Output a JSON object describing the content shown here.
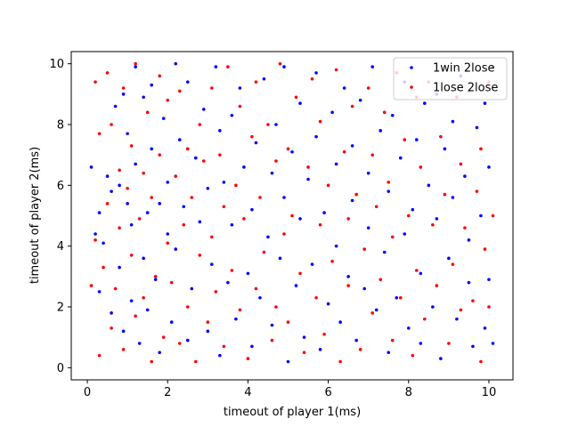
{
  "chart_data": {
    "type": "scatter",
    "xlabel": "timeout of player 1(ms)",
    "ylabel": "timeout of player 2(ms)",
    "xlim": [
      -0.4,
      10.6
    ],
    "ylim": [
      -0.4,
      10.4
    ],
    "xticks": [
      0,
      2,
      4,
      6,
      8,
      10
    ],
    "yticks": [
      0,
      2,
      4,
      6,
      8,
      10
    ],
    "grid": false,
    "legend_position": "top-right",
    "series": [
      {
        "name": "1win 2lose",
        "color": "#0000ff",
        "points": [
          [
            0.1,
            6.6
          ],
          [
            0.2,
            4.4
          ],
          [
            0.3,
            5.1
          ],
          [
            0.3,
            2.5
          ],
          [
            0.4,
            4.1
          ],
          [
            0.5,
            6.3
          ],
          [
            0.6,
            5.8
          ],
          [
            0.6,
            1.8
          ],
          [
            0.7,
            8.6
          ],
          [
            0.8,
            6.0
          ],
          [
            0.8,
            3.3
          ],
          [
            0.9,
            9.0
          ],
          [
            0.9,
            1.2
          ],
          [
            1.0,
            7.7
          ],
          [
            1.0,
            5.4
          ],
          [
            1.1,
            4.7
          ],
          [
            1.1,
            2.2
          ],
          [
            1.2,
            9.9
          ],
          [
            1.2,
            6.7
          ],
          [
            1.3,
            0.8
          ],
          [
            1.4,
            3.6
          ],
          [
            1.4,
            8.9
          ],
          [
            1.5,
            5.1
          ],
          [
            1.5,
            1.9
          ],
          [
            1.6,
            7.2
          ],
          [
            1.6,
            9.3
          ],
          [
            1.7,
            2.9
          ],
          [
            1.8,
            5.4
          ],
          [
            1.8,
            0.5
          ],
          [
            1.9,
            8.2
          ],
          [
            2.0,
            4.4
          ],
          [
            2.0,
            6.1
          ],
          [
            2.1,
            1.5
          ],
          [
            2.2,
            10.0
          ],
          [
            2.2,
            3.9
          ],
          [
            2.3,
            7.5
          ],
          [
            2.4,
            5.3
          ],
          [
            2.5,
            0.9
          ],
          [
            2.5,
            9.4
          ],
          [
            2.6,
            2.6
          ],
          [
            2.7,
            6.9
          ],
          [
            2.8,
            4.8
          ],
          [
            2.9,
            8.5
          ],
          [
            3.0,
            1.2
          ],
          [
            3.0,
            5.9
          ],
          [
            3.1,
            3.4
          ],
          [
            3.2,
            9.9
          ],
          [
            3.3,
            7.8
          ],
          [
            3.3,
            0.4
          ],
          [
            3.4,
            6.1
          ],
          [
            3.5,
            2.8
          ],
          [
            3.6,
            8.3
          ],
          [
            3.6,
            4.7
          ],
          [
            3.7,
            1.6
          ],
          [
            3.8,
            9.2
          ],
          [
            3.9,
            6.6
          ],
          [
            4.0,
            3.1
          ],
          [
            4.1,
            5.2
          ],
          [
            4.1,
            0.7
          ],
          [
            4.2,
            7.4
          ],
          [
            4.3,
            2.3
          ],
          [
            4.4,
            9.5
          ],
          [
            4.5,
            4.3
          ],
          [
            4.6,
            6.4
          ],
          [
            4.6,
            1.4
          ],
          [
            4.7,
            8.0
          ],
          [
            4.8,
            3.6
          ],
          [
            4.9,
            9.9
          ],
          [
            4.9,
            5.6
          ],
          [
            5.0,
            0.2
          ],
          [
            5.1,
            7.1
          ],
          [
            5.2,
            2.7
          ],
          [
            5.3,
            4.9
          ],
          [
            5.3,
            8.7
          ],
          [
            5.4,
            1.0
          ],
          [
            5.5,
            6.2
          ],
          [
            5.6,
            3.4
          ],
          [
            5.7,
            9.7
          ],
          [
            5.7,
            7.6
          ],
          [
            5.8,
            0.6
          ],
          [
            5.9,
            5.1
          ],
          [
            6.0,
            2.1
          ],
          [
            6.1,
            8.4
          ],
          [
            6.2,
            4.0
          ],
          [
            6.2,
            6.7
          ],
          [
            6.3,
            1.5
          ],
          [
            6.4,
            9.2
          ],
          [
            6.5,
            3.0
          ],
          [
            6.6,
            5.5
          ],
          [
            6.6,
            7.3
          ],
          [
            6.7,
            0.9
          ],
          [
            6.8,
            8.8
          ],
          [
            6.9,
            2.6
          ],
          [
            7.0,
            4.6
          ],
          [
            7.0,
            6.4
          ],
          [
            7.1,
            9.9
          ],
          [
            7.2,
            1.9
          ],
          [
            7.3,
            7.8
          ],
          [
            7.4,
            3.8
          ],
          [
            7.5,
            5.8
          ],
          [
            7.5,
            0.5
          ],
          [
            7.6,
            8.3
          ],
          [
            7.7,
            2.3
          ],
          [
            7.8,
            6.9
          ],
          [
            7.9,
            4.4
          ],
          [
            7.9,
            9.4
          ],
          [
            8.0,
            1.3
          ],
          [
            8.1,
            5.2
          ],
          [
            8.2,
            7.5
          ],
          [
            8.3,
            3.1
          ],
          [
            8.3,
            0.8
          ],
          [
            8.4,
            8.7
          ],
          [
            8.5,
            6.0
          ],
          [
            8.6,
            2.0
          ],
          [
            8.7,
            9.0
          ],
          [
            8.7,
            4.9
          ],
          [
            8.8,
            0.3
          ],
          [
            8.9,
            7.2
          ],
          [
            9.0,
            3.6
          ],
          [
            9.1,
            5.6
          ],
          [
            9.1,
            8.1
          ],
          [
            9.2,
            1.6
          ],
          [
            9.3,
            9.6
          ],
          [
            9.4,
            6.3
          ],
          [
            9.5,
            2.8
          ],
          [
            9.5,
            4.2
          ],
          [
            9.6,
            0.7
          ],
          [
            9.7,
            7.9
          ],
          [
            9.8,
            5.0
          ],
          [
            9.9,
            1.3
          ],
          [
            9.9,
            8.7
          ],
          [
            10.0,
            2.9
          ],
          [
            10.0,
            6.6
          ],
          [
            10.1,
            0.8
          ],
          [
            10.1,
            9.9
          ]
        ]
      },
      {
        "name": "1lose 2lose",
        "color": "#ff0000",
        "points": [
          [
            0.1,
            2.7
          ],
          [
            0.2,
            9.4
          ],
          [
            0.2,
            4.2
          ],
          [
            0.3,
            0.4
          ],
          [
            0.3,
            7.7
          ],
          [
            0.4,
            3.3
          ],
          [
            0.5,
            9.7
          ],
          [
            0.5,
            5.4
          ],
          [
            0.6,
            1.3
          ],
          [
            0.6,
            8.0
          ],
          [
            0.7,
            2.6
          ],
          [
            0.8,
            6.5
          ],
          [
            0.8,
            4.6
          ],
          [
            0.9,
            9.2
          ],
          [
            0.9,
            0.6
          ],
          [
            1.0,
            5.9
          ],
          [
            1.1,
            3.7
          ],
          [
            1.1,
            7.3
          ],
          [
            1.2,
            1.7
          ],
          [
            1.2,
            10.0
          ],
          [
            1.3,
            4.9
          ],
          [
            1.4,
            6.4
          ],
          [
            1.4,
            2.3
          ],
          [
            1.5,
            8.4
          ],
          [
            1.6,
            0.2
          ],
          [
            1.6,
            5.6
          ],
          [
            1.7,
            3.0
          ],
          [
            1.8,
            9.6
          ],
          [
            1.8,
            7.0
          ],
          [
            1.9,
            1.0
          ],
          [
            2.0,
            4.1
          ],
          [
            2.0,
            8.8
          ],
          [
            2.1,
            2.8
          ],
          [
            2.2,
            6.3
          ],
          [
            2.3,
            0.8
          ],
          [
            2.3,
            9.1
          ],
          [
            2.4,
            4.7
          ],
          [
            2.5,
            7.2
          ],
          [
            2.5,
            2.0
          ],
          [
            2.6,
            5.6
          ],
          [
            2.7,
            0.2
          ],
          [
            2.8,
            8.0
          ],
          [
            2.8,
            3.7
          ],
          [
            2.9,
            6.8
          ],
          [
            3.0,
            1.5
          ],
          [
            3.1,
            9.2
          ],
          [
            3.1,
            4.3
          ],
          [
            3.2,
            2.5
          ],
          [
            3.3,
            7.0
          ],
          [
            3.4,
            5.3
          ],
          [
            3.4,
            0.7
          ],
          [
            3.5,
            9.9
          ],
          [
            3.6,
            3.2
          ],
          [
            3.7,
            6.0
          ],
          [
            3.8,
            1.9
          ],
          [
            3.8,
            8.6
          ],
          [
            3.9,
            4.9
          ],
          [
            4.0,
            0.3
          ],
          [
            4.1,
            7.6
          ],
          [
            4.2,
            2.6
          ],
          [
            4.2,
            9.4
          ],
          [
            4.3,
            5.6
          ],
          [
            4.4,
            3.8
          ],
          [
            4.5,
            8.0
          ],
          [
            4.6,
            0.9
          ],
          [
            4.7,
            6.8
          ],
          [
            4.7,
            2.0
          ],
          [
            4.8,
            10.0
          ],
          [
            4.9,
            4.4
          ],
          [
            5.0,
            7.2
          ],
          [
            5.0,
            1.5
          ],
          [
            5.1,
            5.0
          ],
          [
            5.2,
            8.9
          ],
          [
            5.3,
            3.1
          ],
          [
            5.4,
            0.5
          ],
          [
            5.5,
            6.6
          ],
          [
            5.6,
            9.5
          ],
          [
            5.7,
            2.3
          ],
          [
            5.8,
            4.7
          ],
          [
            5.8,
            8.1
          ],
          [
            5.9,
            1.1
          ],
          [
            6.0,
            6.0
          ],
          [
            6.1,
            3.5
          ],
          [
            6.2,
            9.8
          ],
          [
            6.3,
            0.2
          ],
          [
            6.4,
            7.1
          ],
          [
            6.5,
            4.9
          ],
          [
            6.5,
            2.7
          ],
          [
            6.6,
            8.6
          ],
          [
            6.7,
            5.7
          ],
          [
            6.8,
            0.6
          ],
          [
            6.9,
            3.9
          ],
          [
            7.0,
            9.2
          ],
          [
            7.1,
            7.0
          ],
          [
            7.1,
            1.8
          ],
          [
            7.2,
            5.3
          ],
          [
            7.3,
            2.9
          ],
          [
            7.4,
            8.4
          ],
          [
            7.5,
            6.1
          ],
          [
            7.6,
            0.9
          ],
          [
            7.6,
            4.3
          ],
          [
            7.7,
            9.7
          ],
          [
            7.8,
            2.3
          ],
          [
            7.9,
            7.5
          ],
          [
            8.0,
            5.0
          ],
          [
            8.1,
            0.4
          ],
          [
            8.2,
            8.9
          ],
          [
            8.2,
            3.2
          ],
          [
            8.3,
            6.6
          ],
          [
            8.4,
            1.6
          ],
          [
            8.5,
            9.4
          ],
          [
            8.6,
            4.7
          ],
          [
            8.7,
            2.7
          ],
          [
            8.8,
            7.6
          ],
          [
            8.9,
            5.7
          ],
          [
            9.0,
            0.8
          ],
          [
            9.1,
            3.4
          ],
          [
            9.2,
            8.9
          ],
          [
            9.3,
            6.7
          ],
          [
            9.3,
            1.9
          ],
          [
            9.4,
            4.6
          ],
          [
            9.5,
            9.1
          ],
          [
            9.6,
            2.2
          ],
          [
            9.7,
            5.8
          ],
          [
            9.8,
            7.2
          ],
          [
            9.8,
            0.2
          ],
          [
            9.9,
            3.9
          ],
          [
            10.0,
            9.4
          ],
          [
            10.0,
            2.0
          ],
          [
            10.1,
            5.0
          ]
        ]
      }
    ]
  }
}
